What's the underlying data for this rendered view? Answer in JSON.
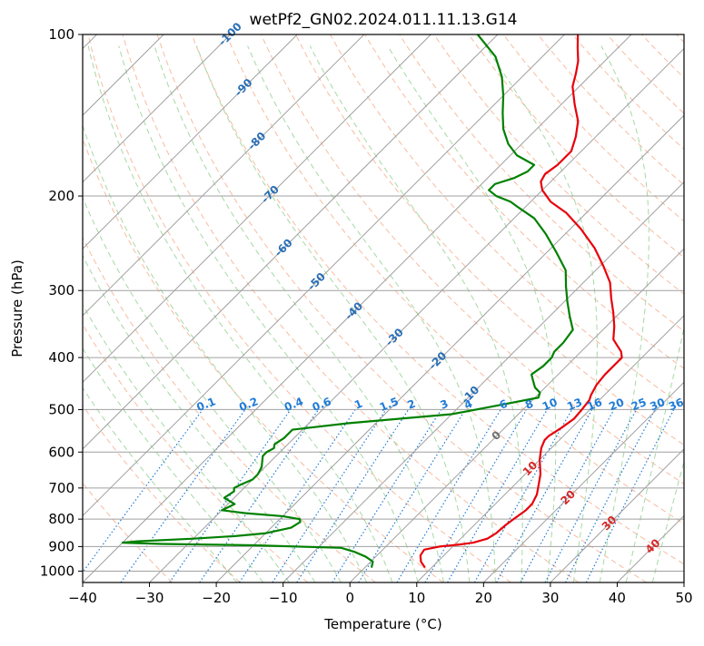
{
  "chart_data": {
    "type": "line",
    "subtype": "skew-t log-p",
    "title": "wetPf2_GN02.2024.011.11.13.G14",
    "xlabel": "Temperature (°C)",
    "ylabel": "Pressure (hPa)",
    "xlim": [
      -40,
      50
    ],
    "ylim": [
      1050,
      100
    ],
    "y_scale": "log",
    "x_ticks": [
      -40,
      -30,
      -20,
      -10,
      0,
      10,
      20,
      30,
      40,
      50
    ],
    "x_tick_labels": [
      "−40",
      "−30",
      "−20",
      "−10",
      "0",
      "10",
      "20",
      "30",
      "40",
      "50"
    ],
    "y_ticks": [
      1000,
      900,
      800,
      700,
      600,
      500,
      400,
      300,
      200,
      100
    ],
    "y_tick_labels": [
      "1000",
      "900",
      "800",
      "700",
      "600",
      "500",
      "400",
      "300",
      "200",
      "100"
    ],
    "grid": true,
    "colors": {
      "temperature": "#e8000b",
      "dewpoint": "#008000",
      "isotherm": "#a0a0a0",
      "dry_adiabat": "#f4a582",
      "moist_adiabat": "#8fcf8f",
      "mixing_ratio": "#1f7bd8",
      "iso_label_blue": "#2a6fb5",
      "iso_label_red": "#d62728",
      "iso_label_gray": "#707070"
    },
    "series": [
      {
        "key": "temperature",
        "pressure": [
          985,
          960,
          935,
          912,
          900,
          893,
          885,
          870,
          850,
          820,
          800,
          770,
          750,
          720,
          700,
          660,
          620,
          590,
          570,
          560,
          540,
          520,
          500,
          480,
          470,
          450,
          430,
          415,
          400,
          390,
          370,
          350,
          330,
          310,
          290,
          270,
          250,
          230,
          215,
          205,
          195,
          188,
          182,
          175,
          165,
          155,
          145,
          135,
          125,
          118,
          112,
          106,
          100
        ],
        "temperature": [
          9.0,
          7.5,
          6.5,
          6.2,
          8.0,
          10.5,
          12.5,
          14.0,
          14.5,
          14.7,
          15.0,
          15.5,
          15.5,
          14.8,
          14.0,
          12.3,
          10.0,
          8.5,
          7.8,
          7.8,
          8.5,
          9.0,
          8.8,
          8.5,
          8.0,
          7.3,
          7.0,
          7.0,
          7.0,
          6.0,
          3.0,
          1.2,
          -1.0,
          -3.5,
          -6.0,
          -9.5,
          -13.5,
          -18.5,
          -23.0,
          -27.0,
          -30.0,
          -31.5,
          -32.0,
          -31.5,
          -31.5,
          -33.0,
          -35.0,
          -38.0,
          -41.0,
          -42.5,
          -44.0,
          -46.0,
          -48.0
        ]
      },
      {
        "key": "dewpoint",
        "pressure": [
          985,
          960,
          940,
          920,
          905,
          895,
          890,
          885,
          880,
          870,
          860,
          850,
          830,
          810,
          800,
          790,
          780,
          770,
          760,
          750,
          730,
          710,
          700,
          690,
          675,
          660,
          640,
          620,
          610,
          600,
          590,
          580,
          565,
          550,
          545,
          530,
          510,
          490,
          475,
          465,
          455,
          440,
          430,
          415,
          400,
          390,
          375,
          355,
          335,
          315,
          295,
          275,
          255,
          235,
          220,
          210,
          205,
          200,
          195,
          190,
          185,
          180,
          175,
          168,
          160,
          150,
          140,
          130,
          120,
          110,
          100
        ],
        "temperature": [
          1.0,
          0.3,
          -1.5,
          -4.0,
          -6.5,
          -20.0,
          -34.0,
          -40.0,
          -38.0,
          -30.0,
          -24.0,
          -20.0,
          -17.0,
          -16.5,
          -17.0,
          -20.0,
          -26.0,
          -30.0,
          -29.5,
          -29.0,
          -31.5,
          -31.0,
          -31.5,
          -31.0,
          -30.0,
          -30.0,
          -30.5,
          -31.5,
          -32.0,
          -32.0,
          -31.5,
          -32.0,
          -31.5,
          -31.5,
          -31.5,
          -24.0,
          -10.0,
          -4.0,
          0.5,
          0.0,
          -1.5,
          -3.0,
          -4.0,
          -3.5,
          -3.5,
          -4.0,
          -4.0,
          -4.5,
          -7.0,
          -9.5,
          -12.0,
          -14.5,
          -18.5,
          -23.0,
          -27.0,
          -31.0,
          -33.0,
          -36.0,
          -38.0,
          -38.0,
          -36.0,
          -35.0,
          -35.0,
          -39.0,
          -42.0,
          -45.0,
          -47.5,
          -50.0,
          -53.0,
          -57.0,
          -63.0
        ]
      }
    ],
    "isopleth_labels": {
      "isotherm_labels": [
        {
          "text": "-100",
          "value": -100
        },
        {
          "text": "-90",
          "value": -90
        },
        {
          "text": "-80",
          "value": -80
        },
        {
          "text": "-70",
          "value": -70
        },
        {
          "text": "-60",
          "value": -60
        },
        {
          "text": "-50",
          "value": -50
        },
        {
          "text": "-40",
          "value": -40
        },
        {
          "text": "-30",
          "value": -30
        },
        {
          "text": "-20",
          "value": -20
        },
        {
          "text": "-10",
          "value": -10
        },
        {
          "text": "0",
          "value": 0
        },
        {
          "text": "10",
          "value": 10
        },
        {
          "text": "20",
          "value": 20
        },
        {
          "text": "30",
          "value": 30
        },
        {
          "text": "40",
          "value": 40
        }
      ],
      "mixing_ratio_labels": [
        "0.1",
        "0.2",
        "0.4",
        "0.6",
        "1",
        "1.5",
        "2",
        "3",
        "4",
        "6",
        "8",
        "10",
        "13",
        "16",
        "20",
        "25",
        "30",
        "36"
      ],
      "mixing_ratio_label_values": [
        0.1,
        0.2,
        0.4,
        0.6,
        1,
        1.5,
        2,
        3,
        4,
        6,
        8,
        10,
        13,
        16,
        20,
        25,
        30,
        36
      ],
      "mixing_ratio_label_pressure": 490
    }
  }
}
